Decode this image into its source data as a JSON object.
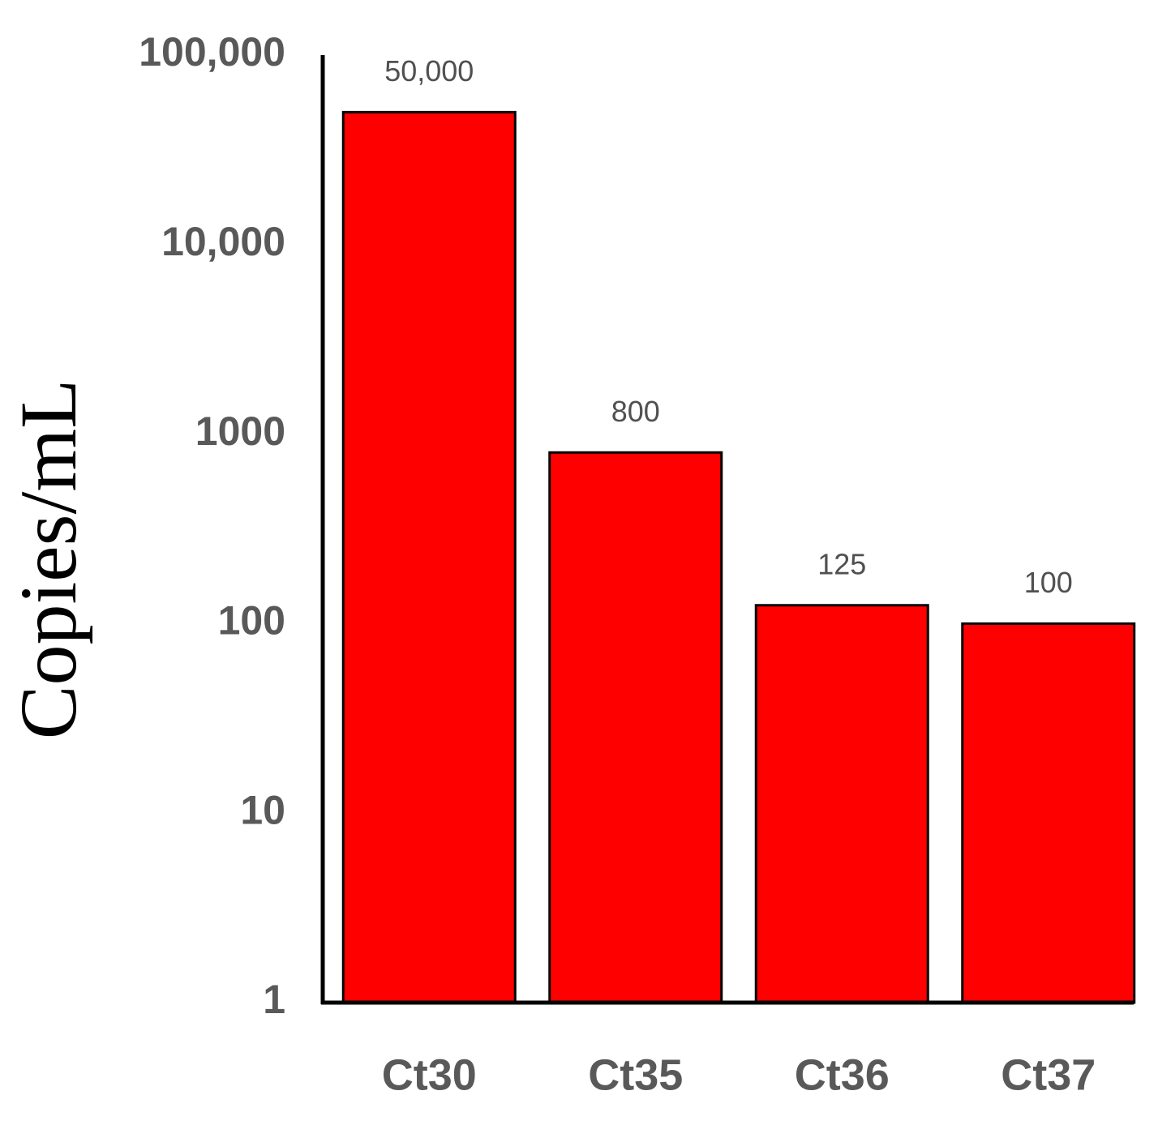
{
  "chart_data": {
    "type": "bar",
    "y_label": "Copies/mL",
    "categories": [
      "Ct30",
      "Ct35",
      "Ct36",
      "Ct37"
    ],
    "values": [
      50000,
      800,
      125,
      100
    ],
    "value_labels": [
      "50,000",
      "800",
      "125",
      "100"
    ],
    "color": "#ff0000",
    "log": true,
    "ylim": [
      1,
      100000
    ],
    "yticks": [
      1,
      10,
      100,
      1000,
      {
        "value": 10000,
        "label": "10,000"
      },
      {
        "value": 100000,
        "label": "100,000"
      }
    ],
    "grid": false
  }
}
